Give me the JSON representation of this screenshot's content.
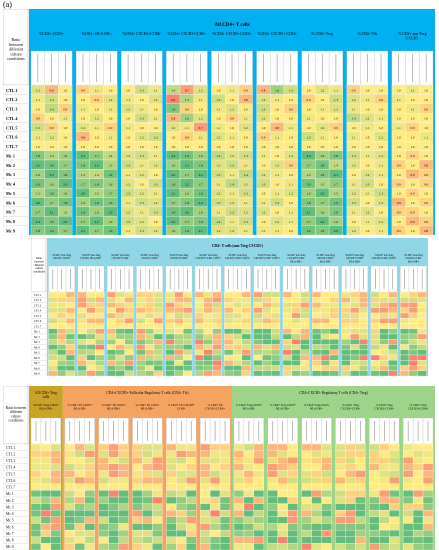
{
  "panel_label": "(a)",
  "colors": {
    "header_blue": "#00b0f0",
    "header_cyan": "#8fd6e6",
    "header_gold": "#c9a227",
    "header_orange": "#f4a460",
    "header_green": "#9ed38a",
    "cell_green": "#63be7b",
    "cell_yellow": "#ffeb84",
    "cell_red": "#f8696b",
    "cell_white": "#ffffff"
  },
  "chart_data": [
    {
      "type": "heatmap",
      "title": "All CD4+ T cells",
      "row_header": "Ratio between different culture conditions",
      "rows": [
        "CTL 1",
        "CTL 2",
        "CTL 3",
        "CTL 4",
        "CTL 5",
        "CTL 6",
        "CTL 7",
        "Mc 1",
        "Mc 2",
        "Mc 3",
        "Mc 4",
        "Mc 5",
        "Mc 6",
        "Mc 7",
        "Mc 8",
        "Mc 9"
      ],
      "groups": [
        {
          "label": "%CD4+ CD25+",
          "cols": 3
        },
        {
          "label": "%CD4+ HLA-DR+",
          "cols": 3
        },
        {
          "label": "%CD4+ CXCR3+CCR6-",
          "cols": 3
        },
        {
          "label": "%CD4+ CXCR3-CCR6+",
          "cols": 3
        },
        {
          "label": "%CD4+ CXCR3+CCR6+",
          "cols": 3
        },
        {
          "label": "%CD4+ CXCR5+ CCR6-",
          "cols": 3
        },
        {
          "label": "% CD4+ Treg",
          "cols": 3
        },
        {
          "label": "% CD4+ Tfh",
          "cols": 3
        },
        {
          "label": "% CD4+ non-Treg CXCR5-",
          "cols": 3
        }
      ],
      "values": [
        [
          1.2,
          0.8,
          1.0,
          0.9,
          1.1,
          1.0,
          1.0,
          1.3,
          1.1,
          1.4,
          0.7,
          1.2,
          1.0,
          1.1,
          0.9,
          0.8,
          1.6,
          1.3,
          1.0,
          1.2,
          1.1,
          0.9,
          1.0,
          1.0,
          1.0,
          1.1,
          1.0
        ],
        [
          1.1,
          1.3,
          1.0,
          1.0,
          0.9,
          1.2,
          1.1,
          1.0,
          1.2,
          0.6,
          1.5,
          1.1,
          1.3,
          1.0,
          0.8,
          1.2,
          1.1,
          1.0,
          0.9,
          1.0,
          1.3,
          1.2,
          1.1,
          0.9,
          1.1,
          1.0,
          1.0
        ],
        [
          1.0,
          1.4,
          0.9,
          1.1,
          1.0,
          1.1,
          1.2,
          1.1,
          1.0,
          1.8,
          0.9,
          1.0,
          1.1,
          1.2,
          1.0,
          1.3,
          1.0,
          0.9,
          1.0,
          1.1,
          1.2,
          1.1,
          1.0,
          1.0,
          1.0,
          1.1,
          0.9
        ],
        [
          0.9,
          1.0,
          1.1,
          1.0,
          1.2,
          1.0,
          1.0,
          1.3,
          1.1,
          0.8,
          1.6,
          1.2,
          1.0,
          0.9,
          1.1,
          1.2,
          1.0,
          1.0,
          1.1,
          1.0,
          1.0,
          1.4,
          1.2,
          1.1,
          1.0,
          1.0,
          1.0
        ],
        [
          1.3,
          0.9,
          1.0,
          1.2,
          1.1,
          0.9,
          1.1,
          1.0,
          1.0,
          1.2,
          1.1,
          0.7,
          1.1,
          1.0,
          1.2,
          1.0,
          0.8,
          1.1,
          1.0,
          1.2,
          0.9,
          1.0,
          1.1,
          1.0,
          1.1,
          0.9,
          1.0
        ],
        [
          1.1,
          1.2,
          1.0,
          0.8,
          1.0,
          1.1,
          1.0,
          1.2,
          1.3,
          1.0,
          0.9,
          1.1,
          1.2,
          1.1,
          1.0,
          0.9,
          1.1,
          1.0,
          1.3,
          1.1,
          1.0,
          1.1,
          1.0,
          1.2,
          1.0,
          1.0,
          1.1
        ],
        [
          1.0,
          1.0,
          1.0,
          1.0,
          1.0,
          1.0,
          1.0,
          1.0,
          1.0,
          1.0,
          1.0,
          1.0,
          1.0,
          1.0,
          1.0,
          1.0,
          1.0,
          1.0,
          1.0,
          1.0,
          1.0,
          1.0,
          1.0,
          1.0,
          1.0,
          1.0,
          1.0
        ],
        [
          1.8,
          1.5,
          1.6,
          2.1,
          1.7,
          1.4,
          1.2,
          1.3,
          1.1,
          2.4,
          1.9,
          1.6,
          1.4,
          1.2,
          1.3,
          1.1,
          1.0,
          1.2,
          2.0,
          1.6,
          1.8,
          1.3,
          1.1,
          1.2,
          1.0,
          0.9,
          1.0
        ],
        [
          2.2,
          1.9,
          1.7,
          1.8,
          2.0,
          1.5,
          1.3,
          1.1,
          1.2,
          1.6,
          2.1,
          1.8,
          1.2,
          1.3,
          1.1,
          1.0,
          1.2,
          0.9,
          1.7,
          1.9,
          1.4,
          1.2,
          1.0,
          1.1,
          0.9,
          1.0,
          0.8
        ],
        [
          1.6,
          2.3,
          1.8,
          1.5,
          1.4,
          1.9,
          1.1,
          1.2,
          1.0,
          2.0,
          1.7,
          2.2,
          1.3,
          1.1,
          1.4,
          1.2,
          1.1,
          1.0,
          1.5,
          1.8,
          2.1,
          1.0,
          1.2,
          1.1,
          1.0,
          0.8,
          0.9
        ],
        [
          1.9,
          1.6,
          2.0,
          1.7,
          1.8,
          1.6,
          1.2,
          1.0,
          1.3,
          1.8,
          2.2,
          1.7,
          1.1,
          1.4,
          1.2,
          1.3,
          1.0,
          1.1,
          1.9,
          1.5,
          1.7,
          1.1,
          1.3,
          1.0,
          0.9,
          1.0,
          0.9
        ],
        [
          1.5,
          1.8,
          1.6,
          2.0,
          1.5,
          1.7,
          1.3,
          1.2,
          1.1,
          2.1,
          1.6,
          1.9,
          1.2,
          1.1,
          1.3,
          1.0,
          1.1,
          1.2,
          1.6,
          2.0,
          1.5,
          1.2,
          1.1,
          1.3,
          1.0,
          0.9,
          1.0
        ],
        [
          2.0,
          1.7,
          1.9,
          1.6,
          1.9,
          1.8,
          1.1,
          1.3,
          1.2,
          1.7,
          1.8,
          2.0,
          1.3,
          1.2,
          1.1,
          1.1,
          1.3,
          1.0,
          1.8,
          1.7,
          1.9,
          1.3,
          1.0,
          1.2,
          0.8,
          1.0,
          0.9
        ],
        [
          1.7,
          2.1,
          1.5,
          1.9,
          1.6,
          2.0,
          1.2,
          1.1,
          1.3,
          1.9,
          2.0,
          1.6,
          1.1,
          1.3,
          1.2,
          1.2,
          1.0,
          1.1,
          2.1,
          1.6,
          1.8,
          1.1,
          1.2,
          1.0,
          0.9,
          0.9,
          1.0
        ],
        [
          2.4,
          1.8,
          2.0,
          1.7,
          2.2,
          1.6,
          1.3,
          1.2,
          1.0,
          2.2,
          1.7,
          1.8,
          1.4,
          1.1,
          1.3,
          1.0,
          1.2,
          1.1,
          1.7,
          2.2,
          1.6,
          1.0,
          1.1,
          1.2,
          1.0,
          0.8,
          0.9
        ],
        [
          1.8,
          1.9,
          1.7,
          2.1,
          1.7,
          1.9,
          1.1,
          1.3,
          1.2,
          1.6,
          1.9,
          2.1,
          1.2,
          1.2,
          1.1,
          1.1,
          1.1,
          1.0,
          1.9,
          1.8,
          2.0,
          1.2,
          1.0,
          1.1,
          0.9,
          1.0,
          0.8
        ]
      ]
    },
    {
      "type": "heatmap",
      "title": "CD4+ T cells (non-Treg CXCR5-)",
      "row_header": "Ratio between different culture conditions",
      "rows": [
        "CTL 1",
        "CTL 2",
        "CTL 3",
        "CTL 4",
        "CTL 5",
        "CTL 6",
        "CTL 7",
        "Mc 1",
        "Mc 2",
        "Mc 3",
        "Mc 4",
        "Mc 5",
        "Mc 6",
        "Mc 7",
        "Mc 8",
        "Mc 9"
      ],
      "groups": [
        {
          "label": "%CD4+ non-Treg CXCR5- CD25+",
          "cols": 3
        },
        {
          "label": "%CD4+ non-Treg CXCR5- HLA-DR+",
          "cols": 3
        },
        {
          "label": "%CD4+ non-Treg CXCR3+CCR6-",
          "cols": 3
        },
        {
          "label": "%CD4+ non-Treg CXCR3-CCR6+",
          "cols": 3
        },
        {
          "label": "%CD4+ non-Treg CXCR3+CCR6+",
          "cols": 3
        },
        {
          "label": "%CD4+ non-Treg CXCR3+CCR6- CD25+",
          "cols": 3
        },
        {
          "label": "%CD4+ non-Treg CXCR3-CCR6+ CD25+",
          "cols": 3
        },
        {
          "label": "%CD4+ non-Treg CXCR3+CCR6+ CD25+",
          "cols": 3
        },
        {
          "label": "%CD4+ non-Treg CXCR3+CCR6- HLA-DR+",
          "cols": 3
        },
        {
          "label": "%CD4+ non-Treg CXCR3-CCR6+ HLA-DR+",
          "cols": 3
        },
        {
          "label": "%CD4+ non-Treg CXCR3+CCR6+ HLA-DR+",
          "cols": 3
        },
        {
          "label": "%CD4+ non-Treg CXCR3-CCR6- CD25+",
          "cols": 3
        },
        {
          "label": "%CD4+ non-Treg CXCR3-CCR6- HLA-DR+",
          "cols": 3
        }
      ],
      "values_seed": 7
    },
    {
      "type": "heatmap",
      "sections": [
        {
          "label": "All CD4+ Treg cells",
          "color": "header_gold",
          "groups": [
            {
              "label": "%CD4+ Treg CD25+ HLA-DR+",
              "cols": 3
            }
          ]
        },
        {
          "label": "CD4+CXCR5+ Follicular Regulatory T cells (CD4+ Tfr)",
          "color": "header_orange",
          "groups": [
            {
              "label": "% CD4+ Tfr CD25+ HLA-DR-",
              "cols": 3
            },
            {
              "label": "% CD4+ Tfr CD25+ HLA-DR+",
              "cols": 3
            },
            {
              "label": "% CD4+ Tfr CD25- HLA-DR+",
              "cols": 3
            },
            {
              "label": "% CD4+ Tfr CXCR3+ CCR6-",
              "cols": 3
            },
            {
              "label": "% CD4+ Tfr CXCR3-CCR6+",
              "cols": 3
            }
          ]
        },
        {
          "label": "CD4+CXCR5- Regulatory T cells (CD4+ Treg)",
          "color": "header_green",
          "groups": [
            {
              "label": "% CD4+ Treg CD25+ HLA-DR-",
              "cols": 3
            },
            {
              "label": "% CD4+ Treg CD25+ HLA-DR+",
              "cols": 3
            },
            {
              "label": "% CD4+ Treg CD25- HLA-DR+",
              "cols": 3
            },
            {
              "label": "% CD4+ Treg CXCR3+CCR6-",
              "cols": 3
            },
            {
              "label": "% CD4+ Treg CXCR3-CCR6+",
              "cols": 3
            },
            {
              "label": "% CD4+ Treg CXCR3+CCR6+",
              "cols": 3
            }
          ]
        }
      ],
      "row_header": "Ratio between different culture conditions",
      "rows": [
        "CTL 1",
        "CTL 2",
        "CTL 3",
        "CTL 4",
        "CTL 5",
        "CTL 6",
        "CTL 7",
        "Mc 1",
        "Mc 2",
        "Mc 3",
        "Mc 4",
        "Mc 5",
        "Mc 6",
        "Mc 7",
        "Mc 8",
        "Mc 9"
      ],
      "values_seed": 13
    }
  ]
}
